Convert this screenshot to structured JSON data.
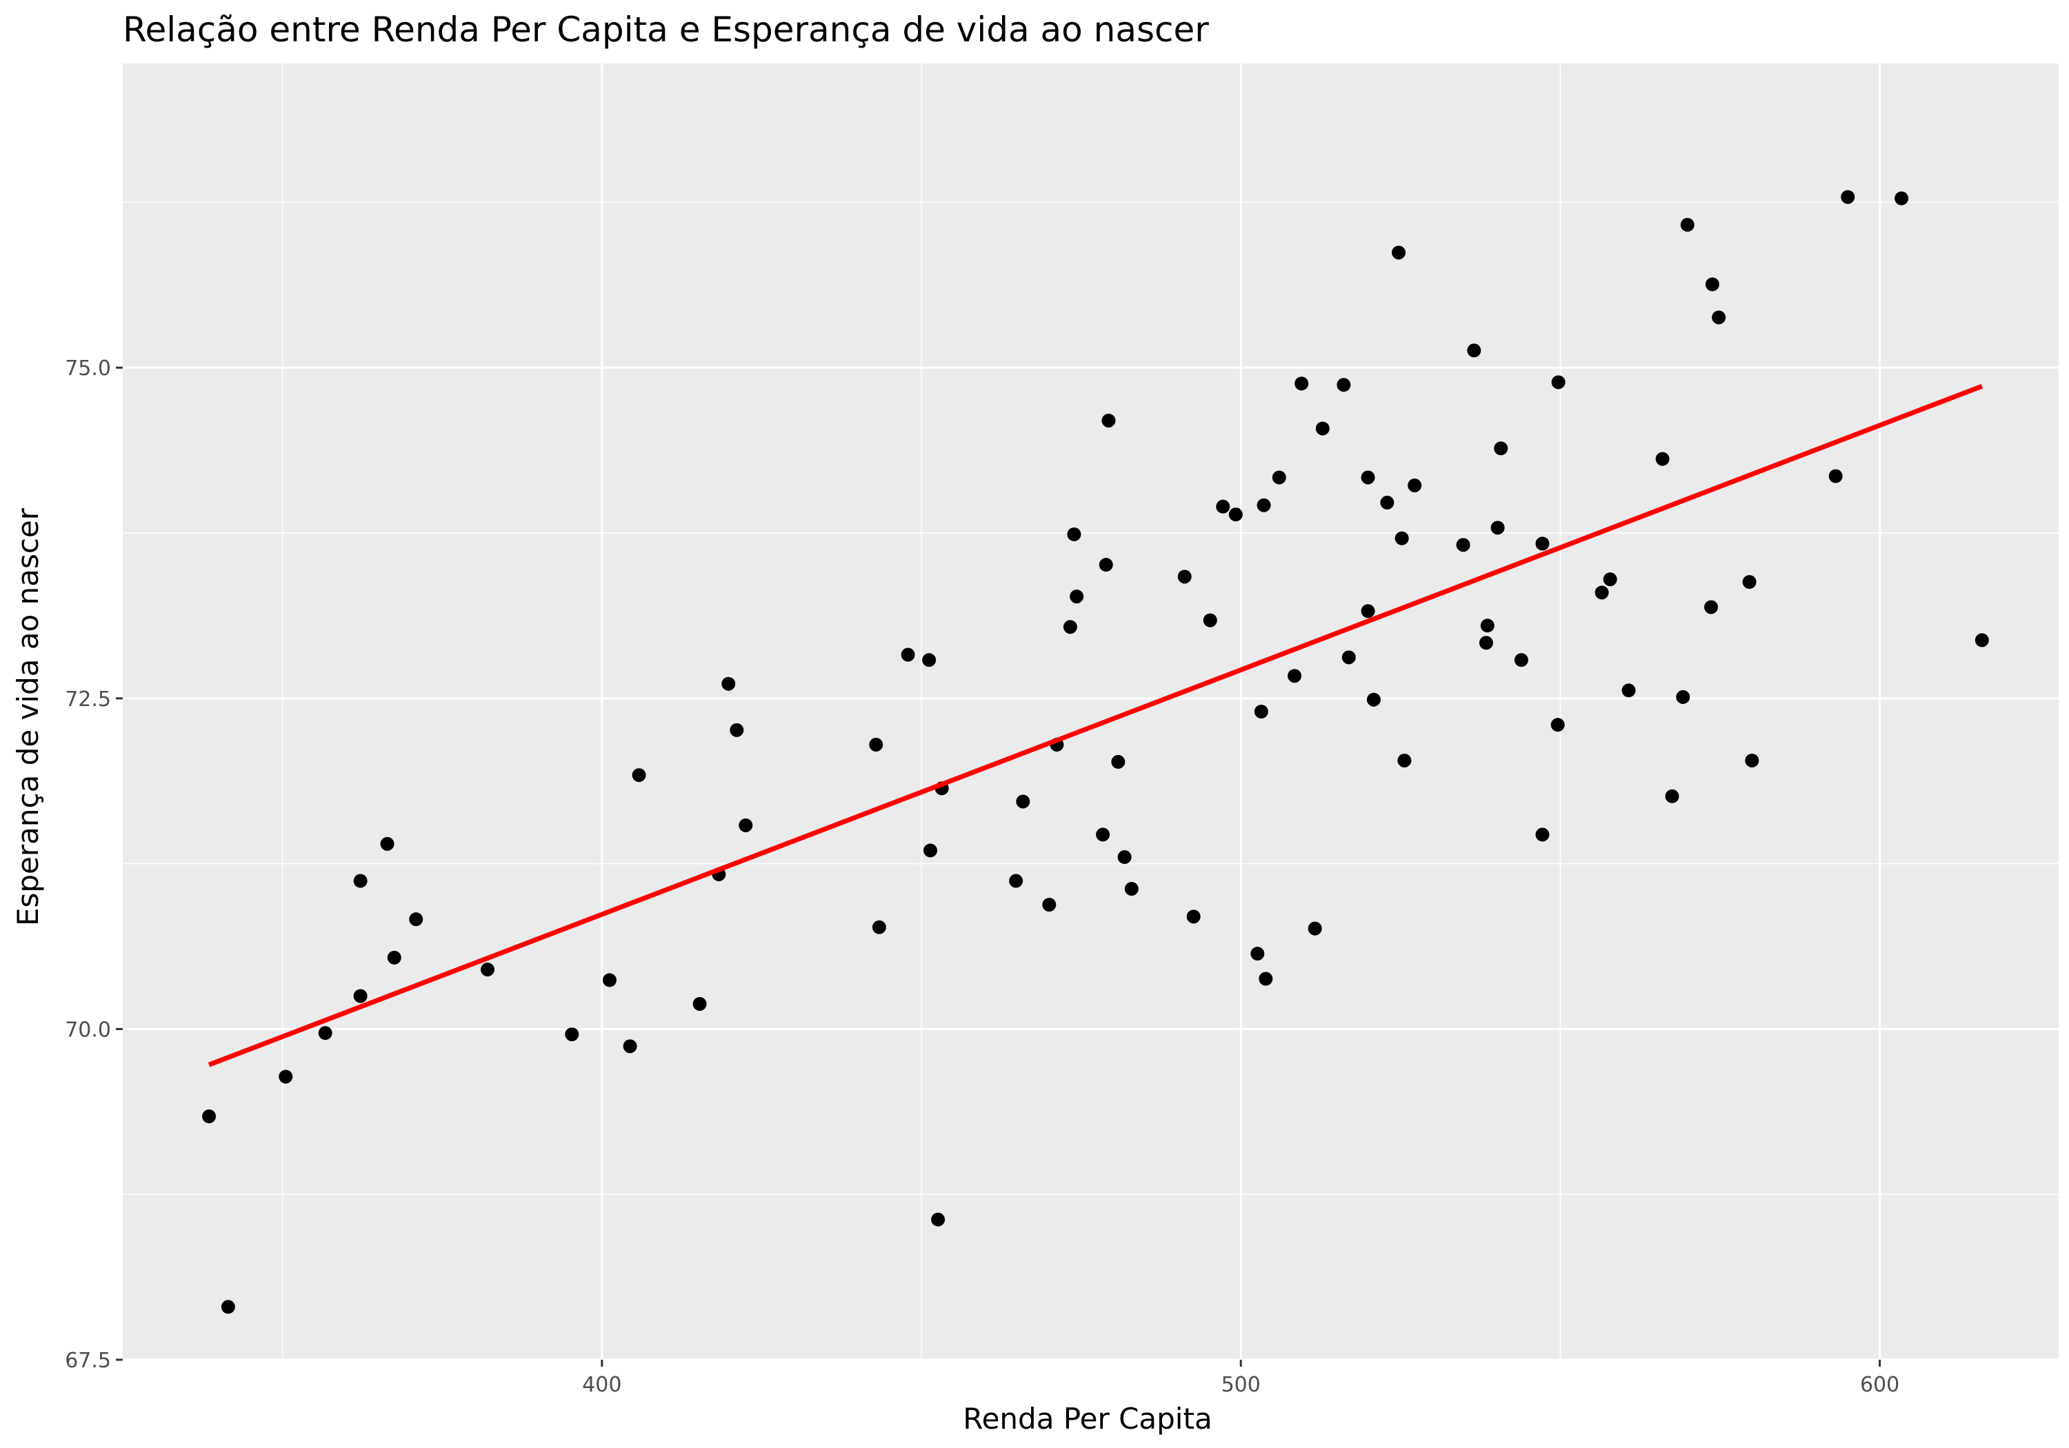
{
  "chart_data": {
    "type": "scatter",
    "title": "Relação entre Renda Per Capita e Esperança de vida ao nascer",
    "xlabel": "Renda Per Capita",
    "ylabel": "Esperança de vida ao nascer",
    "xlim": [
      325,
      628
    ],
    "ylim": [
      67.5,
      77.3
    ],
    "x_ticks": [
      400,
      500,
      600
    ],
    "x_tick_labels": [
      "400",
      "500",
      "600"
    ],
    "y_ticks": [
      67.5,
      70.0,
      72.5,
      75.0
    ],
    "y_tick_labels": [
      "67.5",
      "70.0",
      "72.5",
      "75.0"
    ],
    "grid": true,
    "panel_background": "#ebebeb",
    "point_color": "#000000",
    "trend_color": "#ff0000",
    "points": [
      {
        "x": 338.5,
        "y": 69.34
      },
      {
        "x": 341.5,
        "y": 67.9
      },
      {
        "x": 350.5,
        "y": 69.64
      },
      {
        "x": 356.7,
        "y": 69.97
      },
      {
        "x": 362.2,
        "y": 70.25
      },
      {
        "x": 362.2,
        "y": 71.12
      },
      {
        "x": 366.4,
        "y": 71.4
      },
      {
        "x": 367.5,
        "y": 70.54
      },
      {
        "x": 370.9,
        "y": 70.83
      },
      {
        "x": 382.1,
        "y": 70.45
      },
      {
        "x": 395.3,
        "y": 69.96
      },
      {
        "x": 401.2,
        "y": 70.37
      },
      {
        "x": 404.4,
        "y": 69.87
      },
      {
        "x": 405.8,
        "y": 71.92
      },
      {
        "x": 415.3,
        "y": 70.19
      },
      {
        "x": 418.3,
        "y": 71.17
      },
      {
        "x": 419.8,
        "y": 72.61
      },
      {
        "x": 421.1,
        "y": 72.26
      },
      {
        "x": 422.5,
        "y": 71.54
      },
      {
        "x": 442.9,
        "y": 72.15
      },
      {
        "x": 443.4,
        "y": 70.77
      },
      {
        "x": 447.9,
        "y": 72.83
      },
      {
        "x": 451.2,
        "y": 72.79
      },
      {
        "x": 451.4,
        "y": 71.35
      },
      {
        "x": 452.6,
        "y": 68.56
      },
      {
        "x": 453.2,
        "y": 71.82
      },
      {
        "x": 464.8,
        "y": 71.12
      },
      {
        "x": 465.9,
        "y": 71.72
      },
      {
        "x": 470.0,
        "y": 70.94
      },
      {
        "x": 471.2,
        "y": 72.15
      },
      {
        "x": 473.3,
        "y": 73.04
      },
      {
        "x": 473.9,
        "y": 73.74
      },
      {
        "x": 474.3,
        "y": 73.27
      },
      {
        "x": 478.4,
        "y": 71.47
      },
      {
        "x": 478.9,
        "y": 73.51
      },
      {
        "x": 479.3,
        "y": 74.6
      },
      {
        "x": 480.8,
        "y": 72.02
      },
      {
        "x": 481.8,
        "y": 71.3
      },
      {
        "x": 482.9,
        "y": 71.06
      },
      {
        "x": 491.2,
        "y": 73.42
      },
      {
        "x": 492.6,
        "y": 70.85
      },
      {
        "x": 495.2,
        "y": 73.09
      },
      {
        "x": 497.2,
        "y": 73.95
      },
      {
        "x": 499.2,
        "y": 73.89
      },
      {
        "x": 502.6,
        "y": 70.57
      },
      {
        "x": 503.2,
        "y": 72.4
      },
      {
        "x": 503.6,
        "y": 73.96
      },
      {
        "x": 503.9,
        "y": 70.38
      },
      {
        "x": 506.0,
        "y": 74.17
      },
      {
        "x": 508.4,
        "y": 72.67
      },
      {
        "x": 509.5,
        "y": 74.88
      },
      {
        "x": 511.6,
        "y": 70.76
      },
      {
        "x": 512.8,
        "y": 74.54
      },
      {
        "x": 516.1,
        "y": 74.87
      },
      {
        "x": 516.9,
        "y": 72.81
      },
      {
        "x": 519.9,
        "y": 73.16
      },
      {
        "x": 519.9,
        "y": 74.17
      },
      {
        "x": 520.8,
        "y": 72.49
      },
      {
        "x": 522.9,
        "y": 73.98
      },
      {
        "x": 524.7,
        "y": 75.87
      },
      {
        "x": 525.2,
        "y": 73.71
      },
      {
        "x": 525.6,
        "y": 72.03
      },
      {
        "x": 527.2,
        "y": 74.11
      },
      {
        "x": 534.8,
        "y": 73.66
      },
      {
        "x": 536.5,
        "y": 75.13
      },
      {
        "x": 538.4,
        "y": 72.92
      },
      {
        "x": 538.6,
        "y": 73.05
      },
      {
        "x": 540.2,
        "y": 73.79
      },
      {
        "x": 540.7,
        "y": 74.39
      },
      {
        "x": 543.9,
        "y": 72.79
      },
      {
        "x": 547.2,
        "y": 71.47
      },
      {
        "x": 547.2,
        "y": 73.67
      },
      {
        "x": 549.6,
        "y": 72.3
      },
      {
        "x": 549.7,
        "y": 74.89
      },
      {
        "x": 556.5,
        "y": 73.3
      },
      {
        "x": 557.8,
        "y": 73.4
      },
      {
        "x": 560.7,
        "y": 72.56
      },
      {
        "x": 566.0,
        "y": 74.31
      },
      {
        "x": 567.5,
        "y": 71.76
      },
      {
        "x": 569.2,
        "y": 72.51
      },
      {
        "x": 569.9,
        "y": 76.08
      },
      {
        "x": 573.6,
        "y": 73.19
      },
      {
        "x": 573.8,
        "y": 75.63
      },
      {
        "x": 574.8,
        "y": 75.38
      },
      {
        "x": 579.6,
        "y": 73.38
      },
      {
        "x": 580.0,
        "y": 72.03
      },
      {
        "x": 593.1,
        "y": 74.18
      },
      {
        "x": 595.0,
        "y": 76.29
      },
      {
        "x": 603.4,
        "y": 76.28
      },
      {
        "x": 616.0,
        "y": 72.94
      }
    ],
    "trend_line": {
      "x": [
        338.5,
        616.0
      ],
      "y": [
        69.73,
        74.86
      ]
    }
  }
}
